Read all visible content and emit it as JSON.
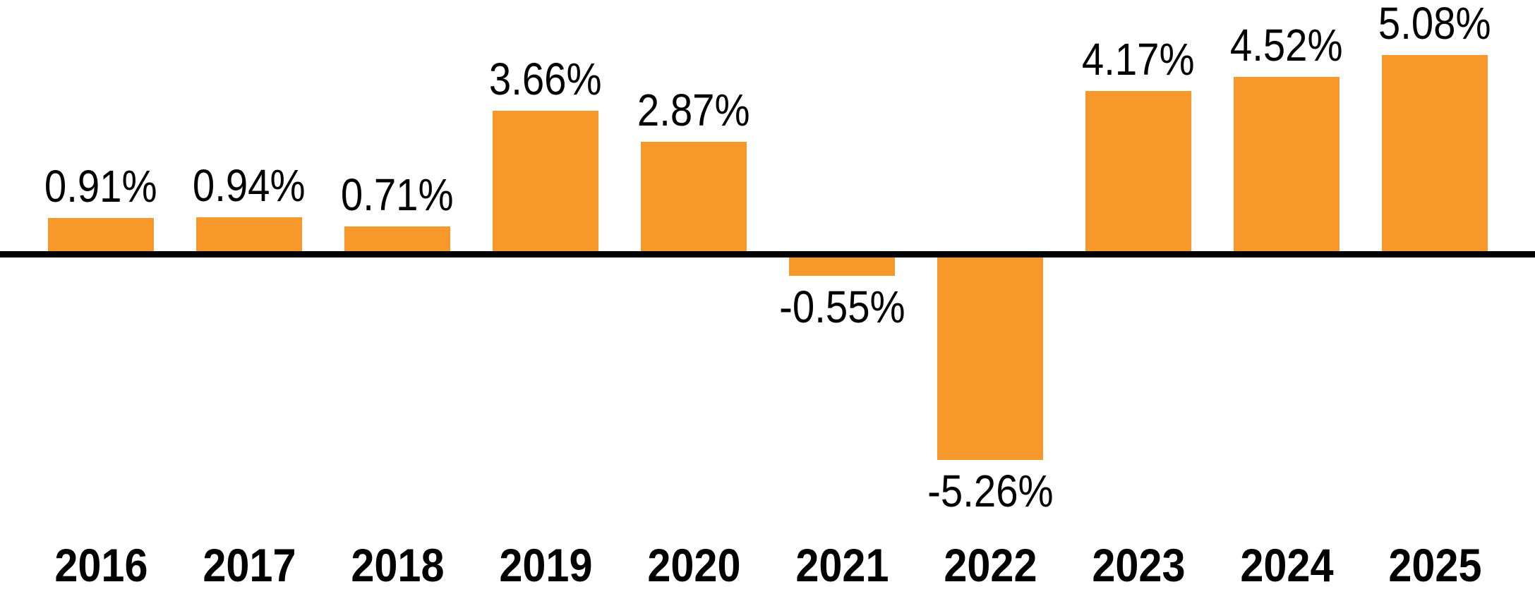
{
  "chart_data": {
    "type": "bar",
    "categories": [
      "2016",
      "2017",
      "2018",
      "2019",
      "2020",
      "2021",
      "2022",
      "2023",
      "2024",
      "2025"
    ],
    "values": [
      0.91,
      0.94,
      0.71,
      3.66,
      2.87,
      -0.55,
      -5.26,
      4.17,
      4.52,
      5.08
    ],
    "value_labels": [
      "0.91%",
      "0.94%",
      "0.71%",
      "3.66%",
      "2.87%",
      "-0.55%",
      "-5.26%",
      "4.17%",
      "4.52%",
      "5.08%"
    ],
    "xlabel": "",
    "ylabel": "",
    "ylim": [
      -5.26,
      5.08
    ],
    "grid": false,
    "legend": false,
    "zero_baseline": true,
    "bar_color": "#F7982B",
    "baseline_color": "#000000",
    "label_color": "#000000"
  }
}
